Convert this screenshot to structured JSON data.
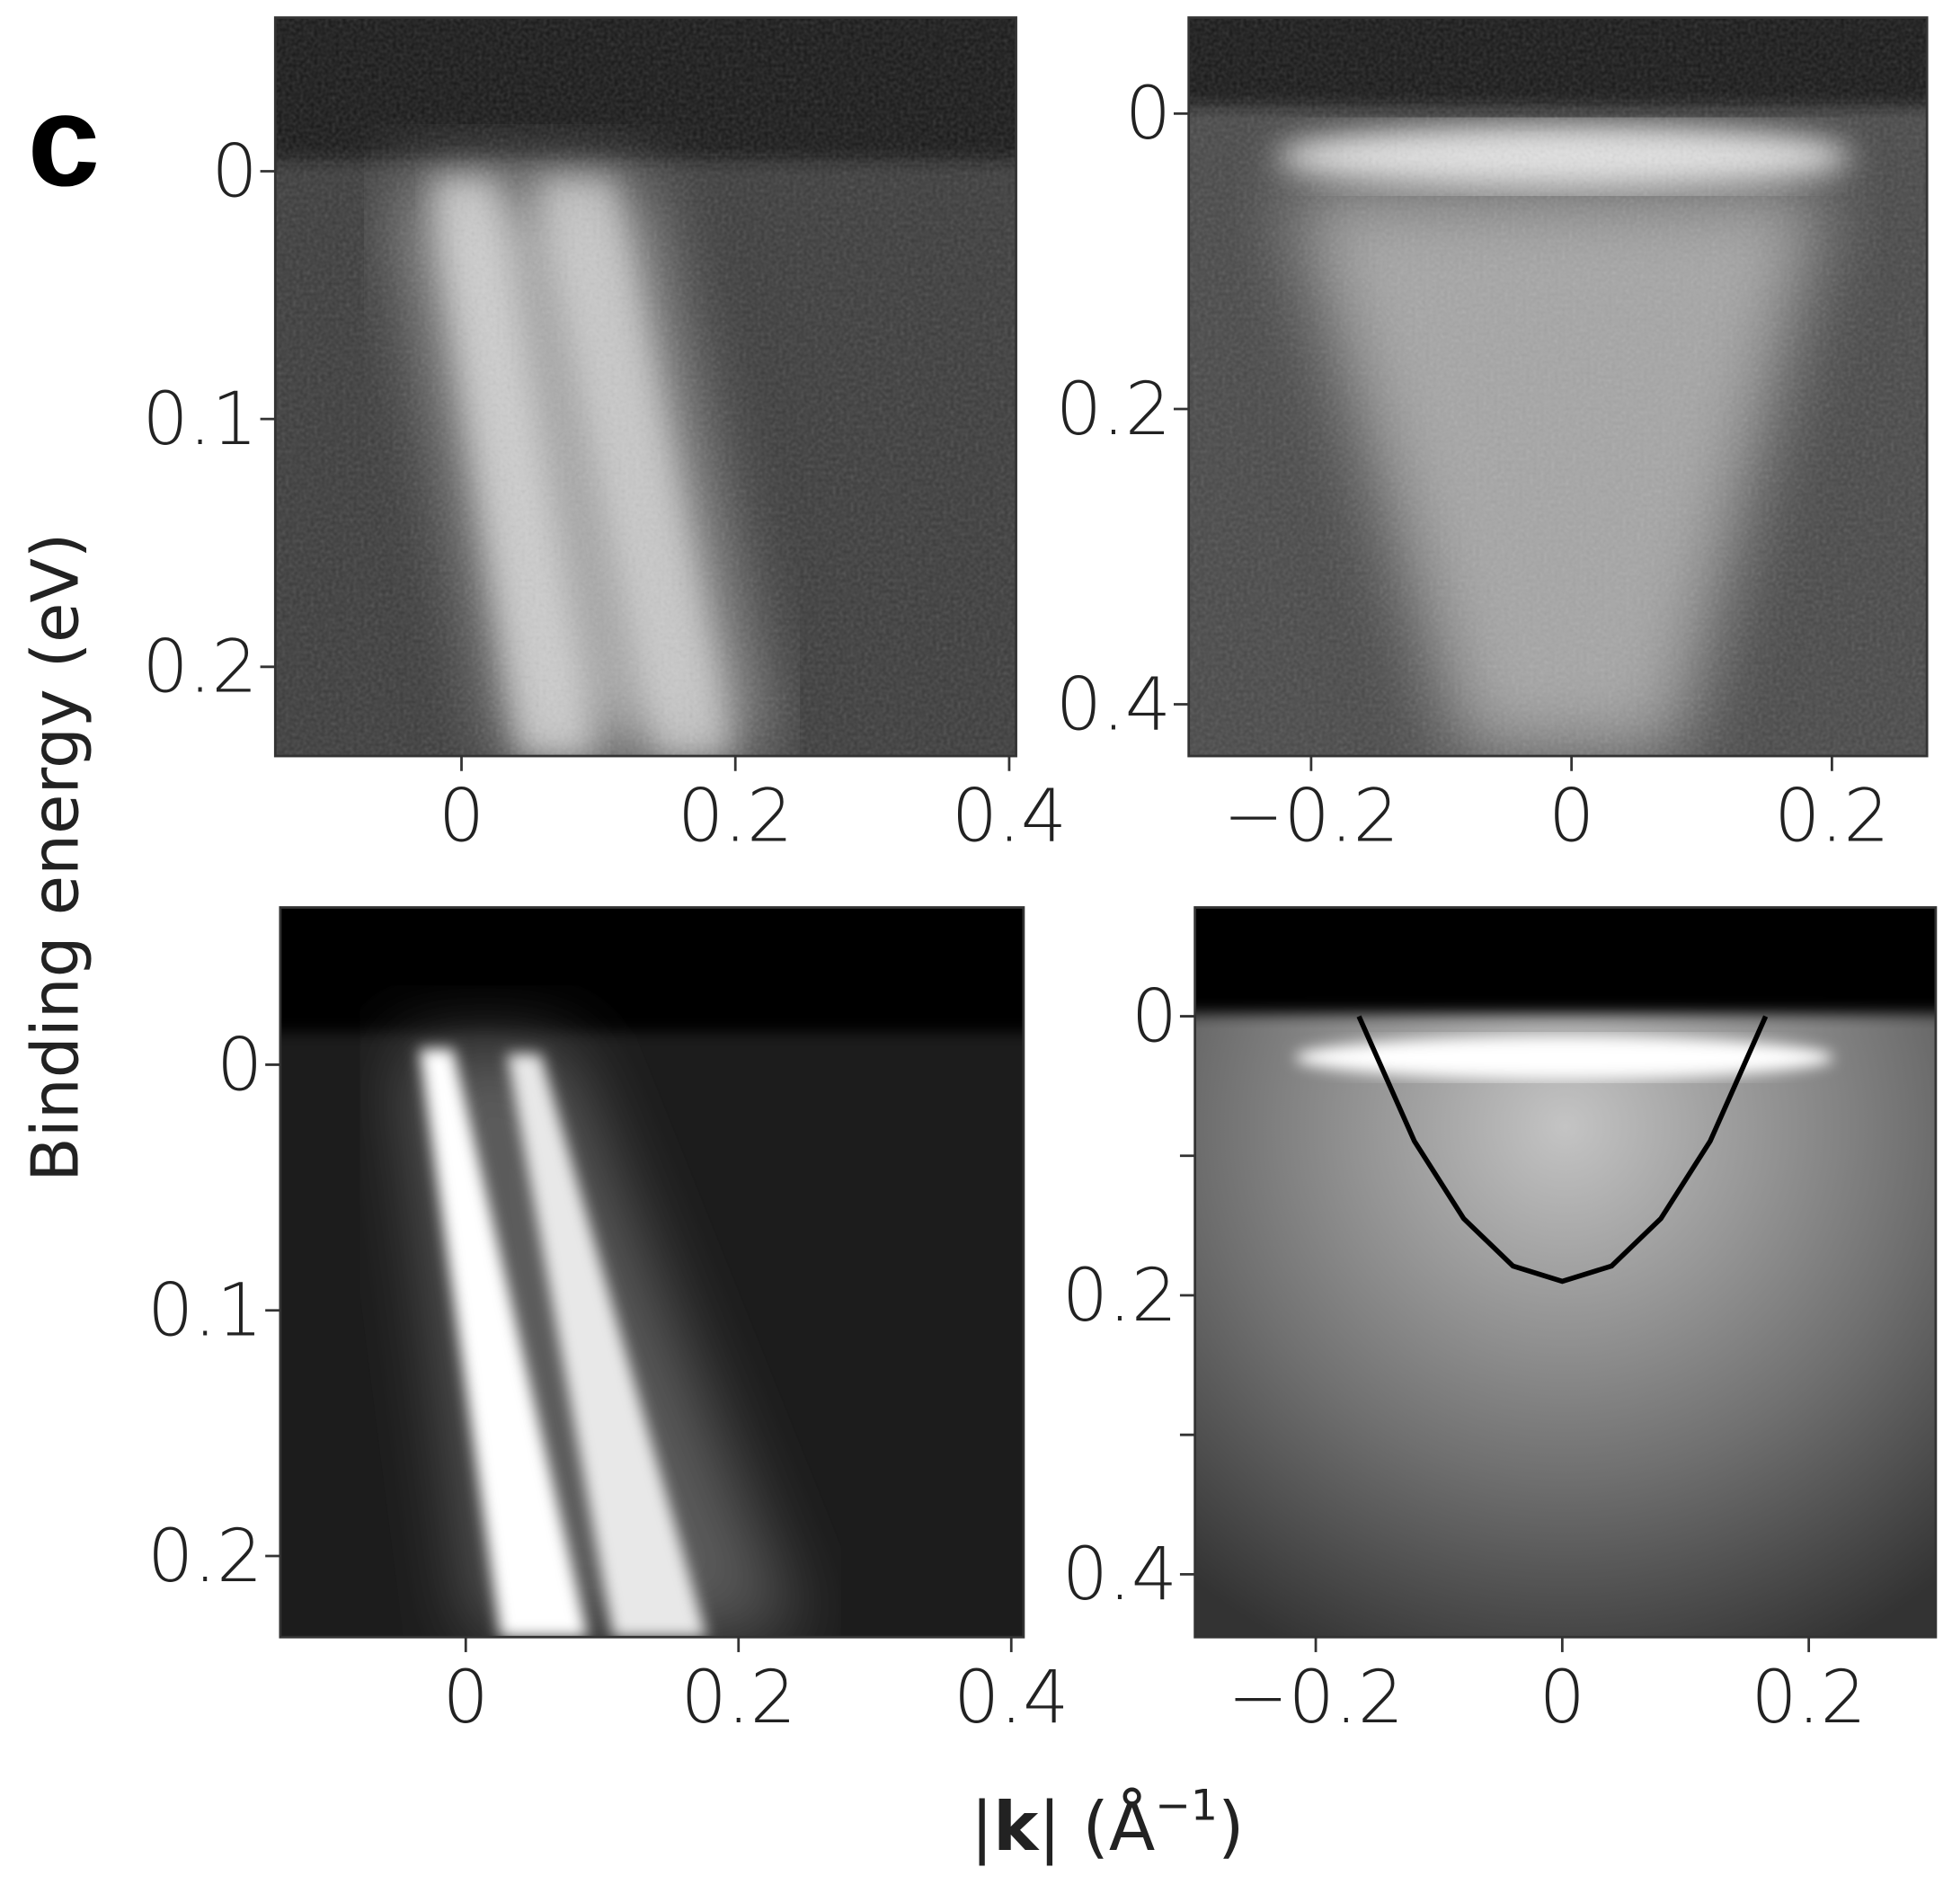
{
  "panel_label": "c",
  "y_label": "Binding energy (eV)",
  "x_label": [
    "|",
    "k",
    "| (Å",
    "−1",
    ")"
  ],
  "chart_data": [
    {
      "type": "heatmap",
      "xlim": [
        -0.136,
        0.405
      ],
      "ylim": [
        0.236,
        -0.062
      ],
      "xticks": [
        0,
        0.2,
        0.4
      ],
      "yticks": [
        0,
        0.1,
        0.2
      ]
    },
    {
      "type": "heatmap",
      "xlim": [
        -0.294,
        0.273
      ],
      "ylim": [
        0.435,
        -0.065
      ],
      "xticks": [
        {
          "value": -0.2,
          "label": "−0.2"
        },
        0,
        0.2
      ],
      "yticks": [
        0,
        0.2,
        0.4
      ]
    },
    {
      "type": "heatmap",
      "xlim": [
        -0.136,
        0.409
      ],
      "ylim": [
        0.233,
        -0.064
      ],
      "xticks": [
        0,
        0.2,
        0.4
      ],
      "yticks": [
        0,
        0.1,
        0.2
      ]
    },
    {
      "type": "heatmap",
      "xlim": [
        -0.298,
        0.303
      ],
      "ylim": [
        0.445,
        -0.078
      ],
      "xticks": [
        {
          "value": -0.2,
          "label": "−0.2"
        },
        0,
        0.2
      ],
      "yticks": [
        0,
        0.2,
        0.4
      ],
      "minor_yticks": [
        0.1,
        0.3
      ],
      "series": [
        {
          "color": "#000000",
          "x": [
            -0.165,
            -0.12,
            -0.08,
            -0.04,
            0,
            0.04,
            0.08,
            0.12,
            0.165
          ],
          "values": [
            0,
            0.0895,
            0.145,
            0.179,
            0.19,
            0.179,
            0.145,
            0.0895,
            0
          ]
        }
      ]
    }
  ]
}
